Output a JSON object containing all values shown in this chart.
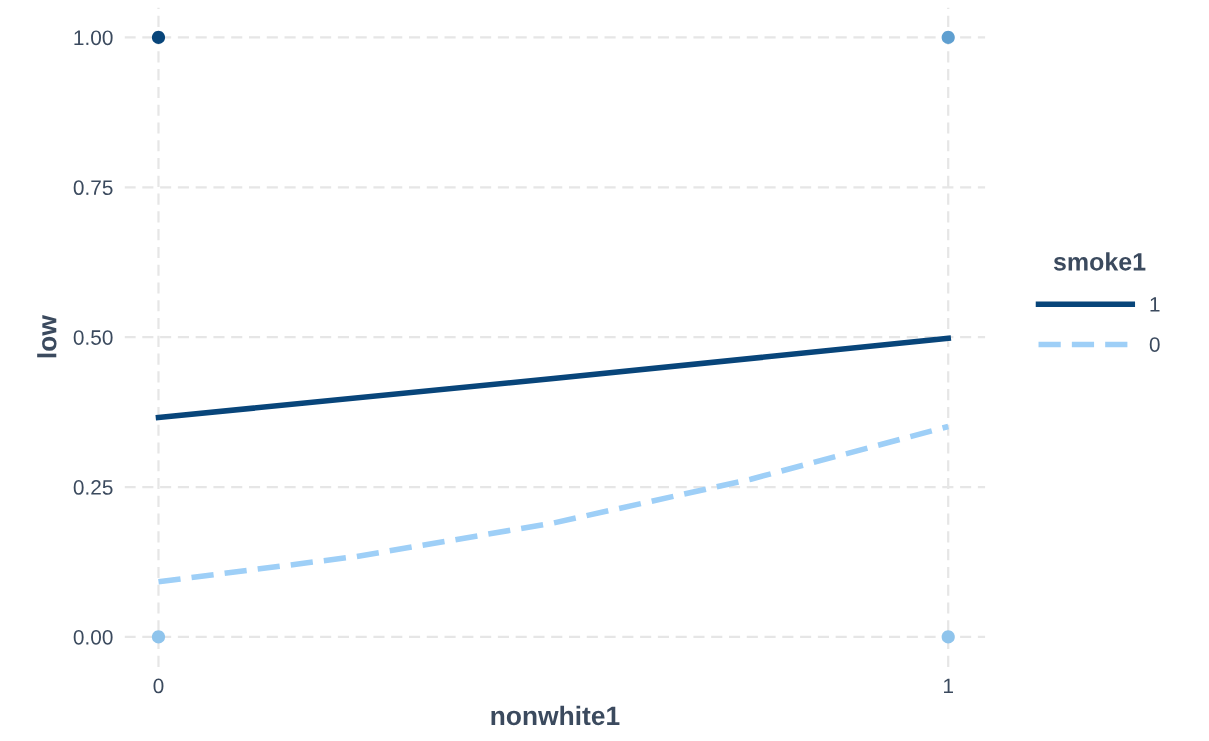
{
  "chart_data": {
    "type": "line",
    "xlabel": "nonwhite1",
    "ylabel": "low",
    "legend_title": "smoke1",
    "legend": "right",
    "grid": true,
    "xlim": [
      -0.043,
      1.047
    ],
    "xticks": [
      0,
      1
    ],
    "ylim": [
      -0.05,
      1.05
    ],
    "yticks": [
      {
        "value": 0,
        "label": "0.00"
      },
      {
        "value": 0.25,
        "label": "0.25"
      },
      {
        "value": 0.5,
        "label": "0.50"
      },
      {
        "value": 0.75,
        "label": "0.75"
      },
      {
        "value": 1,
        "label": "1.00"
      }
    ],
    "series": [
      {
        "name": "1",
        "color": "#08457a",
        "line_style": "solid",
        "x": [
          0,
          0.5,
          1
        ],
        "values": [
          0.366,
          0.431,
          0.498
        ]
      },
      {
        "name": "0",
        "color": "#9ecff7",
        "line_style": "dashed",
        "x": [
          0,
          0.25,
          0.5,
          0.75,
          1
        ],
        "values": [
          0.092,
          0.134,
          0.19,
          0.263,
          0.351
        ]
      },
      {
        "type": "scatter",
        "marker": "circle",
        "x": [
          0,
          1,
          0,
          1
        ],
        "values": [
          1,
          1,
          0,
          0
        ],
        "colors": [
          "#08457a",
          "#5f9fd0",
          "#8fc4ec",
          "#8fc4ec"
        ]
      }
    ]
  }
}
